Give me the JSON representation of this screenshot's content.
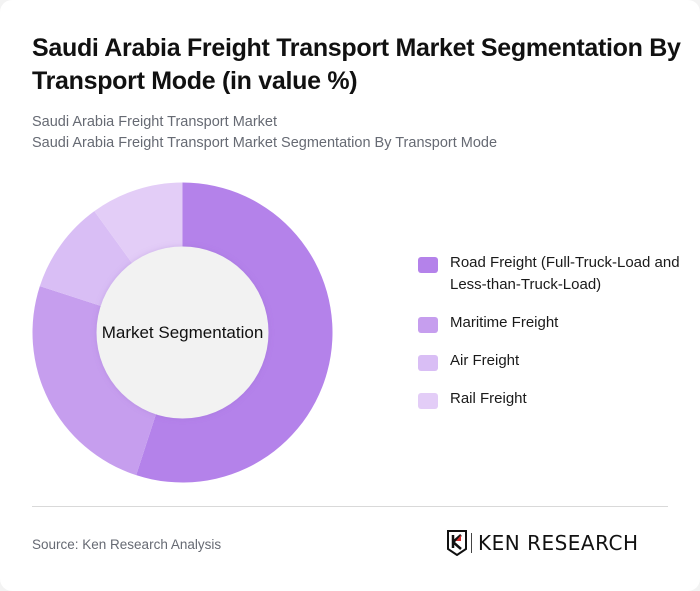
{
  "header": {
    "title": "Saudi Arabia Freight Transport Market Segmentation By Transport Mode (in value %)",
    "subtitle_line1": "Saudi Arabia Freight Transport Market",
    "subtitle_line2": "Saudi Arabia Freight Transport Market Segmentation By Transport Mode"
  },
  "chart": {
    "center_label": "Market Segmentation"
  },
  "legend": {
    "items": [
      {
        "label": "Road Freight (Full-Truck-Load and Less-than-Truck-Load)",
        "color": "#b482ea"
      },
      {
        "label": "Maritime Freight",
        "color": "#c69eee"
      },
      {
        "label": "Air Freight",
        "color": "#d9bef5"
      },
      {
        "label": "Rail Freight",
        "color": "#e3cdf7"
      }
    ]
  },
  "footer": {
    "source": "Source: Ken Research Analysis",
    "logo_text": "KEN RESEARCH"
  },
  "chart_data": {
    "type": "pie",
    "subtype": "donut",
    "title": "Saudi Arabia Freight Transport Market Segmentation By Transport Mode (in value %)",
    "center_label": "Market Segmentation",
    "categories": [
      "Road Freight (Full-Truck-Load and Less-than-Truck-Load)",
      "Maritime Freight",
      "Air Freight",
      "Rail Freight"
    ],
    "values": [
      55,
      25,
      10,
      10
    ],
    "colors": [
      "#b482ea",
      "#c69eee",
      "#d9bef5",
      "#e3cdf7"
    ],
    "legend_position": "right",
    "start_angle": "12 o'clock, clockwise"
  }
}
